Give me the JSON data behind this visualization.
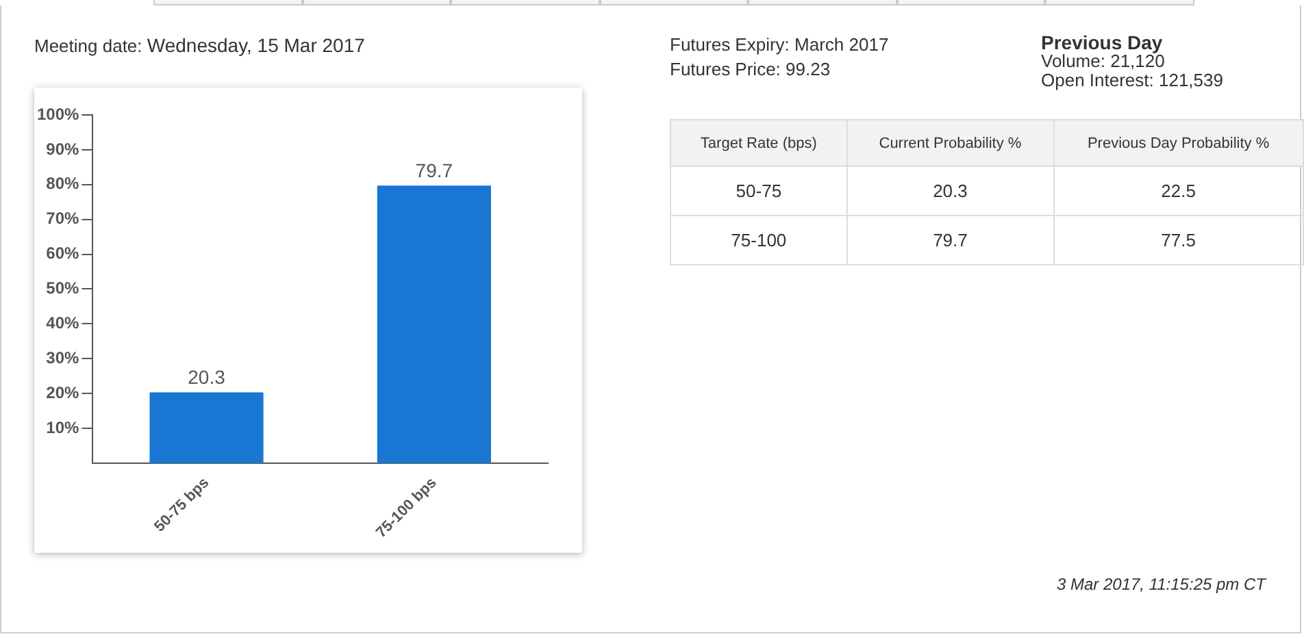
{
  "chart_data": [
    {
      "type": "bar",
      "title": "Meeting date: Wednesday, 15 Mar 2017",
      "categories": [
        "50-75 bps",
        "75-100 bps"
      ],
      "values": [
        20.3,
        79.7
      ],
      "color": "#1976d2",
      "ylim": [
        0,
        100
      ],
      "yticks": [
        {
          "value": 10,
          "label": "10%"
        },
        {
          "value": 20,
          "label": "20%"
        },
        {
          "value": 30,
          "label": "30%"
        },
        {
          "value": 40,
          "label": "40%"
        },
        {
          "value": 50,
          "label": "50%"
        },
        {
          "value": 60,
          "label": "60%"
        },
        {
          "value": 70,
          "label": "70%"
        },
        {
          "value": 80,
          "label": "80%"
        },
        {
          "value": 90,
          "label": "90%"
        },
        {
          "value": 100,
          "label": "100%"
        }
      ],
      "data_labels": true,
      "grid": false,
      "legend": false
    },
    {
      "type": "other",
      "xlabel": "Target Rate (bps)",
      "categories": [
        "50-75",
        "75-100"
      ],
      "series": [
        {
          "name": "Current Probability %",
          "values": [
            20.3,
            79.7
          ]
        },
        {
          "name": "Previous Day Probability %",
          "values": [
            22.5,
            77.5
          ]
        }
      ],
      "data_labels": true,
      "annotations": [
        "Futures Expiry: March 2017",
        "Futures Price: 99.23",
        "Previous Day",
        "Volume: 21,120",
        "Open Interest: 121,539",
        "3 Mar 2017, 11:15:25 pm CT"
      ]
    }
  ]
}
